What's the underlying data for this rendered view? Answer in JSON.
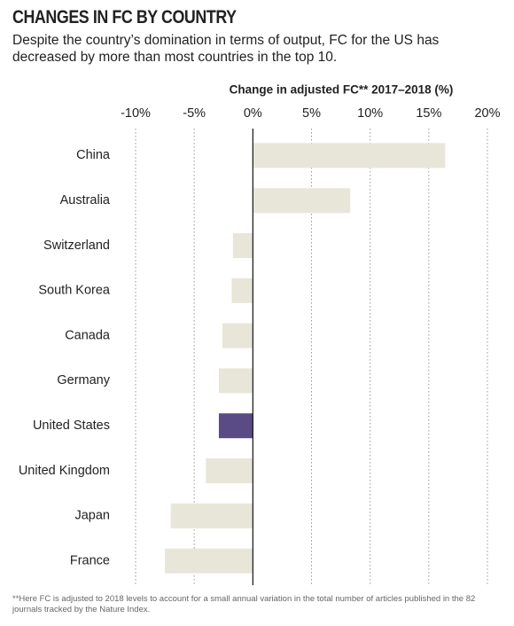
{
  "chart_data": {
    "type": "bar",
    "orientation": "horizontal",
    "title": "CHANGES IN FC BY COUNTRY",
    "subtitle": "Despite the country’s domination in terms of output, FC for the US has decreased by more than most countries in the top 10.",
    "x_label": "Change in adjusted FC** 2017–2018 (%)",
    "footnote": "**Here FC is adjusted to 2018 levels to account for a small annual variation in the total number of articles published in the 82 journals tracked by the Nature Index.",
    "categories": [
      "China",
      "Australia",
      "Switzerland",
      "South Korea",
      "Canada",
      "Germany",
      "United States",
      "United Kingdom",
      "Japan",
      "France"
    ],
    "values": [
      16.4,
      8.3,
      -1.7,
      -1.8,
      -2.6,
      -2.9,
      -2.9,
      -4.0,
      -7.0,
      -7.5
    ],
    "colors": [
      "#e8e6d8",
      "#e8e6d8",
      "#e8e6d8",
      "#e8e6d8",
      "#e8e6d8",
      "#e8e6d8",
      "#5a4a85",
      "#e8e6d8",
      "#e8e6d8",
      "#e8e6d8"
    ],
    "xlim": [
      -10,
      20
    ],
    "xticks": [
      {
        "value": -10,
        "label": "-10%"
      },
      {
        "value": -5,
        "label": "-5%"
      },
      {
        "value": 0,
        "label": "0%"
      },
      {
        "value": 5,
        "label": "5%"
      },
      {
        "value": 10,
        "label": "10%"
      },
      {
        "value": 15,
        "label": "15%"
      },
      {
        "value": 20,
        "label": "20%"
      }
    ],
    "grid": true
  }
}
